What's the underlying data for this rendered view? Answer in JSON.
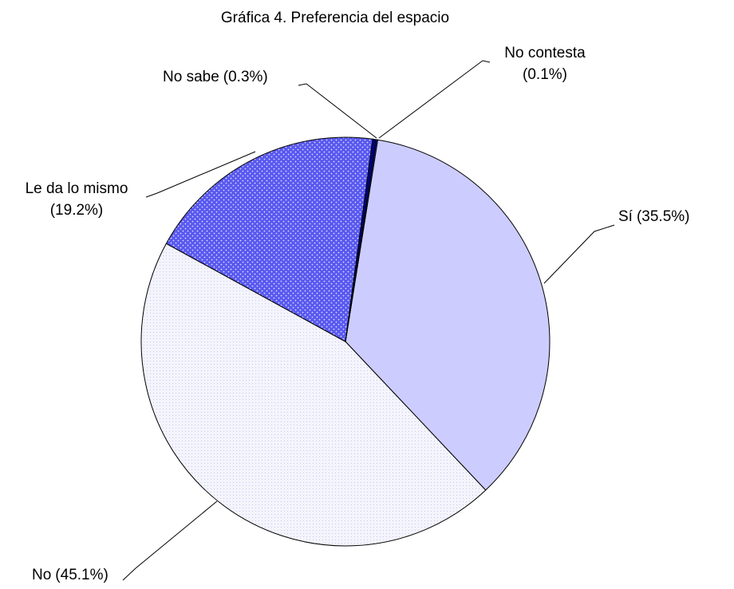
{
  "chart_data": {
    "type": "pie",
    "title": "Gráfica 4. Preferencia del espacio",
    "categories": [
      "Sí",
      "No",
      "Le da lo mismo",
      "No sabe",
      "No contesta"
    ],
    "values": [
      35.5,
      45.1,
      19.2,
      0.3,
      0.1
    ],
    "value_labels": [
      "(35.5%)",
      "(45.1%)",
      "(19.2%)",
      "(0.3%)",
      "(0.1%)"
    ],
    "colors": [
      "#ccccff",
      "#ececfa",
      "#6666ff",
      "#000080",
      "#3333cc"
    ]
  }
}
